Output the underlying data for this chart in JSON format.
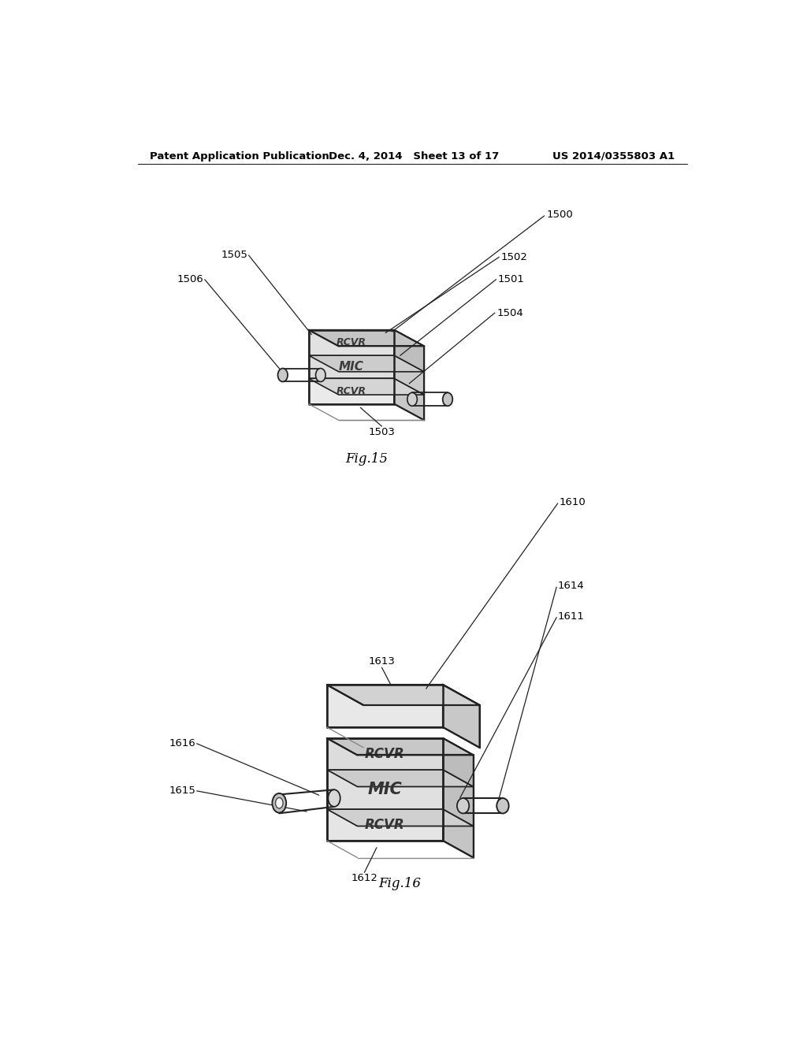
{
  "background_color": "#ffffff",
  "header_left": "Patent Application Publication",
  "header_center": "Dec. 4, 2014   Sheet 13 of 17",
  "header_right": "US 2014/0355803 A1",
  "fig1_label": "Fig.15",
  "fig2_label": "Fig.16",
  "line_color": "#222222",
  "fill_front": "#e8e8e8",
  "fill_top": "#d0d0d0",
  "fill_right": "#c0c0c0",
  "fill_white": "#f5f5f5"
}
